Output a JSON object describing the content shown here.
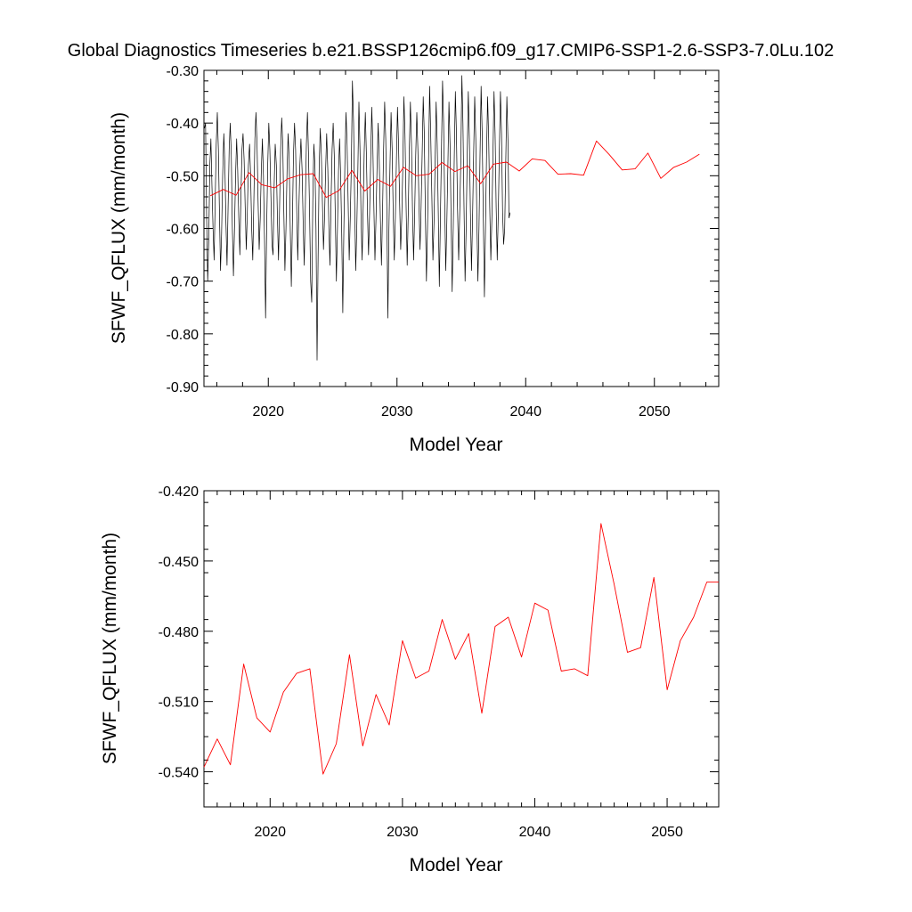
{
  "title": "Global Diagnostics Timeseries b.e21.BSSP126cmip6.f09_g17.CMIP6-SSP1-2.6-SSP3-7.0Lu.102",
  "colors": {
    "monthly": "#000000",
    "annual": "#ff0000"
  },
  "chart_data": [
    {
      "type": "line",
      "xlabel": "Model Year",
      "ylabel": "SFWF_QFLUX (mm/month)",
      "xlim": [
        2015.0,
        2055.0
      ],
      "ylim": [
        -0.9,
        -0.3
      ],
      "x_ticks": [
        2020,
        2030,
        2040,
        2050
      ],
      "x_tick_labels": [
        "2020",
        "2030",
        "2040",
        "2050"
      ],
      "y_ticks": [
        -0.9,
        -0.8,
        -0.7,
        -0.6,
        -0.5,
        -0.4,
        -0.3
      ],
      "y_tick_labels": [
        "-0.90",
        "-0.80",
        "-0.70",
        "-0.60",
        "-0.50",
        "-0.40",
        "-0.30"
      ],
      "series": [
        {
          "color": "#000000",
          "x_start": 2015.04,
          "x_step": 0.08333,
          "values": [
            -0.41,
            -0.4,
            -0.58,
            -0.7,
            -0.62,
            -0.48,
            -0.43,
            -0.52,
            -0.6,
            -0.66,
            -0.55,
            -0.44,
            -0.38,
            -0.45,
            -0.57,
            -0.68,
            -0.61,
            -0.5,
            -0.42,
            -0.48,
            -0.59,
            -0.67,
            -0.56,
            -0.45,
            -0.4,
            -0.46,
            -0.6,
            -0.69,
            -0.6,
            -0.5,
            -0.43,
            -0.49,
            -0.58,
            -0.65,
            -0.54,
            -0.45,
            -0.42,
            -0.47,
            -0.56,
            -0.64,
            -0.57,
            -0.48,
            -0.44,
            -0.5,
            -0.6,
            -0.66,
            -0.55,
            -0.43,
            -0.38,
            -0.44,
            -0.55,
            -0.64,
            -0.58,
            -0.49,
            -0.43,
            -0.5,
            -0.62,
            -0.77,
            -0.6,
            -0.48,
            -0.4,
            -0.45,
            -0.54,
            -0.63,
            -0.65,
            -0.52,
            -0.44,
            -0.48,
            -0.58,
            -0.66,
            -0.56,
            -0.45,
            -0.39,
            -0.44,
            -0.57,
            -0.68,
            -0.6,
            -0.49,
            -0.42,
            -0.47,
            -0.6,
            -0.71,
            -0.59,
            -0.46,
            -0.4,
            -0.45,
            -0.56,
            -0.66,
            -0.57,
            -0.48,
            -0.43,
            -0.49,
            -0.59,
            -0.67,
            -0.56,
            -0.44,
            -0.38,
            -0.46,
            -0.57,
            -0.7,
            -0.74,
            -0.55,
            -0.44,
            -0.48,
            -0.6,
            -0.85,
            -0.65,
            -0.48,
            -0.41,
            -0.46,
            -0.55,
            -0.64,
            -0.58,
            -0.49,
            -0.42,
            -0.49,
            -0.6,
            -0.67,
            -0.55,
            -0.45,
            -0.4,
            -0.46,
            -0.58,
            -0.7,
            -0.6,
            -0.49,
            -0.43,
            -0.5,
            -0.61,
            -0.76,
            -0.6,
            -0.47,
            -0.38,
            -0.44,
            -0.55,
            -0.66,
            -0.58,
            -0.48,
            -0.32,
            -0.4,
            -0.55,
            -0.68,
            -0.6,
            -0.49,
            -0.36,
            -0.45,
            -0.58,
            -0.66,
            -0.56,
            -0.45,
            -0.38,
            -0.46,
            -0.57,
            -0.65,
            -0.57,
            -0.47,
            -0.37,
            -0.44,
            -0.56,
            -0.66,
            -0.58,
            -0.48,
            -0.4,
            -0.47,
            -0.58,
            -0.67,
            -0.57,
            -0.45,
            -0.36,
            -0.43,
            -0.56,
            -0.77,
            -0.6,
            -0.48,
            -0.38,
            -0.45,
            -0.57,
            -0.66,
            -0.58,
            -0.47,
            -0.37,
            -0.44,
            -0.55,
            -0.64,
            -0.58,
            -0.48,
            -0.35,
            -0.42,
            -0.56,
            -0.67,
            -0.57,
            -0.45,
            -0.36,
            -0.44,
            -0.57,
            -0.66,
            -0.57,
            -0.46,
            -0.38,
            -0.45,
            -0.55,
            -0.64,
            -0.56,
            -0.46,
            -0.35,
            -0.42,
            -0.57,
            -0.7,
            -0.6,
            -0.47,
            -0.33,
            -0.42,
            -0.54,
            -0.66,
            -0.59,
            -0.48,
            -0.36,
            -0.44,
            -0.57,
            -0.71,
            -0.58,
            -0.45,
            -0.32,
            -0.4,
            -0.55,
            -0.68,
            -0.59,
            -0.48,
            -0.36,
            -0.44,
            -0.58,
            -0.72,
            -0.6,
            -0.46,
            -0.34,
            -0.42,
            -0.56,
            -0.66,
            -0.57,
            -0.47,
            -0.31,
            -0.4,
            -0.56,
            -0.7,
            -0.6,
            -0.46,
            -0.34,
            -0.43,
            -0.57,
            -0.68,
            -0.58,
            -0.46,
            -0.35,
            -0.43,
            -0.58,
            -0.7,
            -0.6,
            -0.46,
            -0.33,
            -0.42,
            -0.57,
            -0.73,
            -0.6,
            -0.46,
            -0.35,
            -0.43,
            -0.56,
            -0.66,
            -0.58,
            -0.46,
            -0.34,
            -0.42,
            -0.56,
            -0.66,
            -0.57,
            -0.45,
            -0.34,
            -0.42,
            -0.57,
            -0.63,
            -0.6,
            -0.47,
            -0.35,
            -0.43,
            -0.58,
            -0.57
          ]
        },
        {
          "color": "#ff0000",
          "x": [
            2015.5,
            2016.5,
            2017.5,
            2018.5,
            2019.5,
            2020.5,
            2021.5,
            2022.5,
            2023.5,
            2024.5,
            2025.5,
            2026.5,
            2027.5,
            2028.5,
            2029.5,
            2030.5,
            2031.5,
            2032.5,
            2033.5,
            2034.5,
            2035.5,
            2036.5,
            2037.5,
            2038.5,
            2039.5,
            2040.5,
            2041.5,
            2042.5,
            2043.5,
            2044.5,
            2045.5,
            2046.5,
            2047.5,
            2048.5,
            2049.5,
            2050.5,
            2051.5,
            2052.5,
            2053.5
          ],
          "values": [
            -0.538,
            -0.526,
            -0.537,
            -0.494,
            -0.517,
            -0.523,
            -0.506,
            -0.498,
            -0.496,
            -0.541,
            -0.528,
            -0.49,
            -0.529,
            -0.507,
            -0.52,
            -0.484,
            -0.5,
            -0.497,
            -0.475,
            -0.492,
            -0.481,
            -0.515,
            -0.478,
            -0.474,
            -0.491,
            -0.468,
            -0.471,
            -0.497,
            -0.496,
            -0.499,
            -0.434,
            -0.46,
            -0.489,
            -0.487,
            -0.457,
            -0.505,
            -0.484,
            -0.474,
            -0.459
          ]
        }
      ]
    },
    {
      "type": "line",
      "xlabel": "Model Year",
      "ylabel": "SFWF_QFLUX (mm/month)",
      "xlim": [
        2015.0,
        2053.9
      ],
      "ylim": [
        -0.555,
        -0.42
      ],
      "x_ticks": [
        2020,
        2030,
        2040,
        2050
      ],
      "x_tick_labels": [
        "2020",
        "2030",
        "2040",
        "2050"
      ],
      "y_ticks": [
        -0.54,
        -0.51,
        -0.48,
        -0.45,
        -0.42
      ],
      "y_tick_labels": [
        "-0.540",
        "-0.510",
        "-0.480",
        "-0.450",
        "-0.420"
      ],
      "series": [
        {
          "color": "#ff0000",
          "x": [
            2015.0,
            2016.0,
            2017.0,
            2018.0,
            2019.0,
            2020.0,
            2021.0,
            2022.0,
            2023.0,
            2024.0,
            2025.0,
            2026.0,
            2027.0,
            2028.0,
            2029.0,
            2030.0,
            2031.0,
            2032.0,
            2033.0,
            2034.0,
            2035.0,
            2036.0,
            2037.0,
            2038.0,
            2039.0,
            2040.0,
            2041.0,
            2042.0,
            2043.0,
            2044.0,
            2045.0,
            2046.0,
            2047.0,
            2048.0,
            2049.0,
            2050.0,
            2051.0,
            2052.0,
            2053.0,
            2053.9
          ],
          "values": [
            -0.538,
            -0.526,
            -0.537,
            -0.494,
            -0.517,
            -0.523,
            -0.506,
            -0.498,
            -0.496,
            -0.541,
            -0.528,
            -0.49,
            -0.529,
            -0.507,
            -0.52,
            -0.484,
            -0.5,
            -0.497,
            -0.475,
            -0.492,
            -0.481,
            -0.515,
            -0.478,
            -0.474,
            -0.491,
            -0.468,
            -0.471,
            -0.497,
            -0.496,
            -0.499,
            -0.434,
            -0.46,
            -0.489,
            -0.487,
            -0.457,
            -0.505,
            -0.484,
            -0.474,
            -0.459,
            -0.459
          ]
        }
      ]
    }
  ]
}
